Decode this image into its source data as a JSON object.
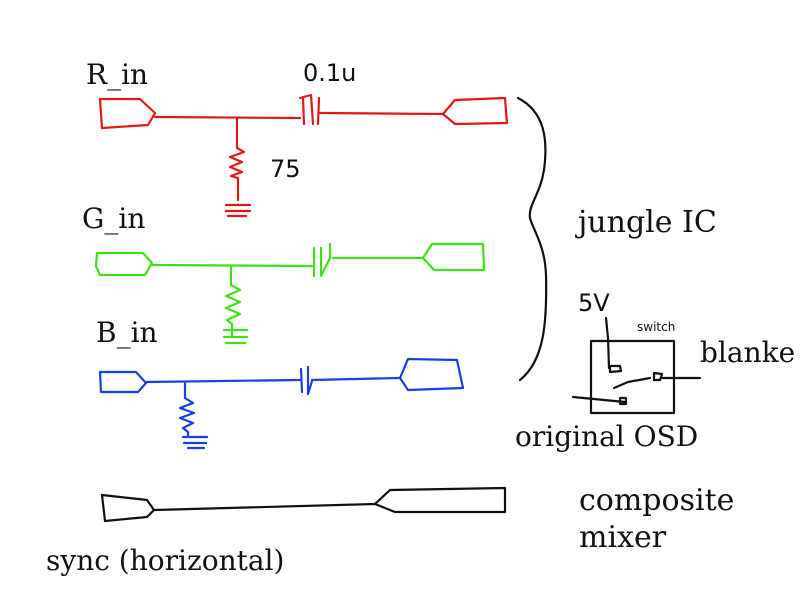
{
  "labels": {
    "r_in": "R_in",
    "g_in": "G_in",
    "b_in": "B_in",
    "capacitor": "0.1u",
    "resistor": "75",
    "jungle_ic": "jungle IC",
    "five_v": "5V",
    "switch": "switch",
    "blanke": "blanke",
    "original_osd": "original OSD",
    "composite": "composite",
    "mixer": "mixer",
    "sync": "sync (horizontal)"
  },
  "colors": {
    "red": "#e01818",
    "green": "#3ee01a",
    "blue": "#1a3fe0",
    "black": "#111111"
  }
}
